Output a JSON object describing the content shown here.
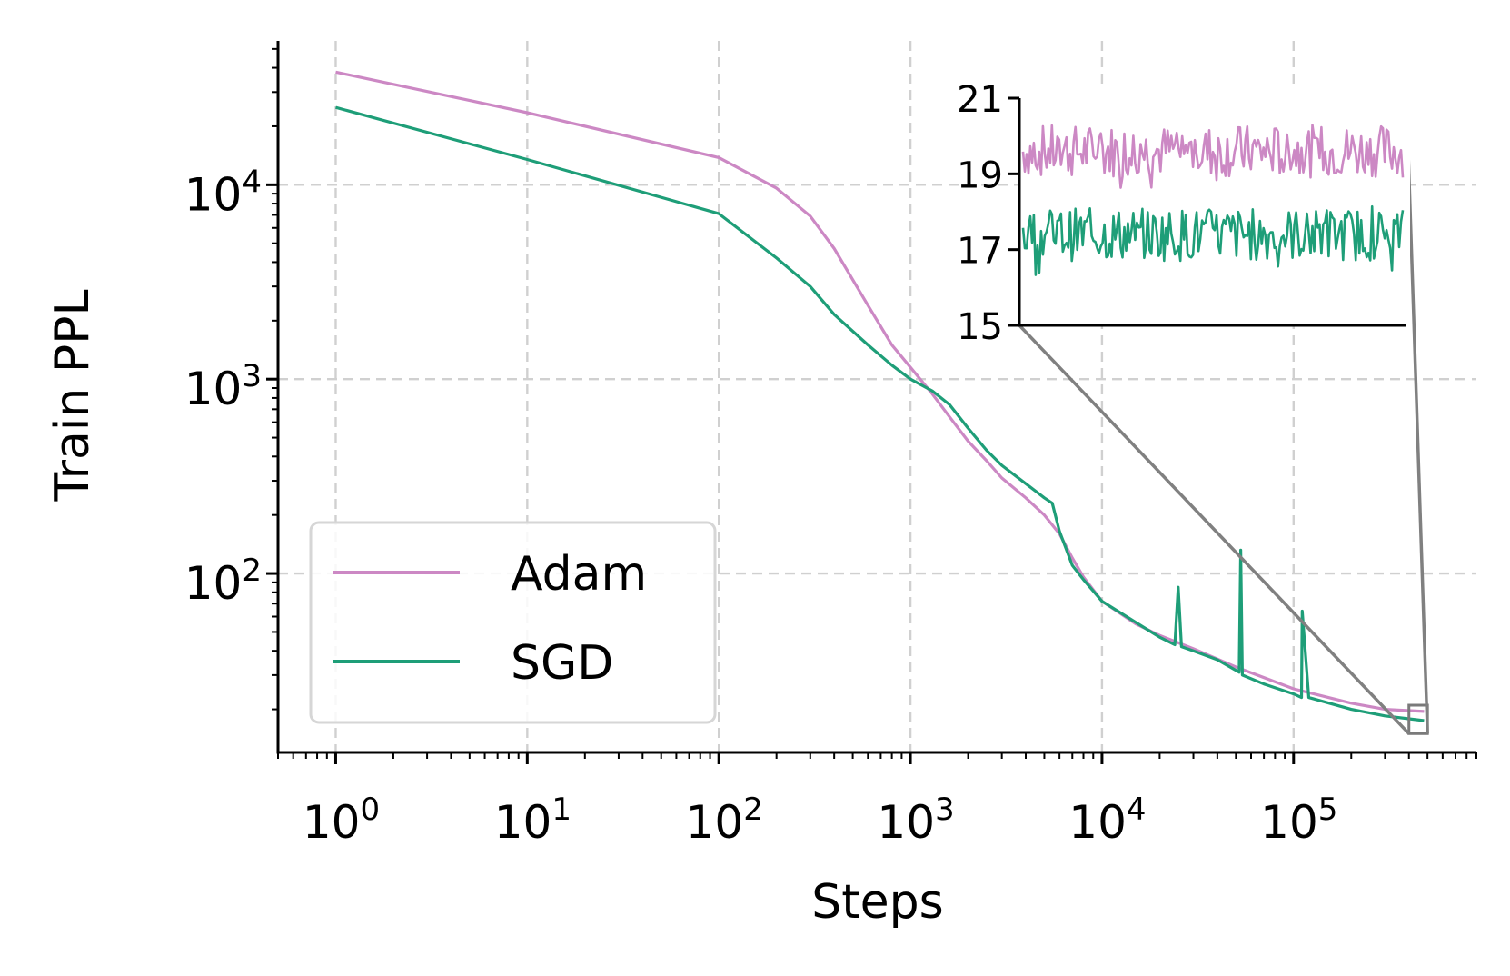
{
  "chart_data": {
    "type": "line",
    "title": "",
    "xlabel": "Steps",
    "ylabel": "Train PPL",
    "xscale": "log",
    "yscale": "log",
    "xlim": [
      0.5,
      900000
    ],
    "ylim": [
      12,
      55000
    ],
    "grid": true,
    "legend_position": "lower-left",
    "x_tick_labels": [
      {
        "base": "10",
        "exp": "0"
      },
      {
        "base": "10",
        "exp": "1"
      },
      {
        "base": "10",
        "exp": "2"
      },
      {
        "base": "10",
        "exp": "3"
      },
      {
        "base": "10",
        "exp": "4"
      },
      {
        "base": "10",
        "exp": "5"
      }
    ],
    "y_tick_labels": [
      {
        "base": "10",
        "exp": "2"
      },
      {
        "base": "10",
        "exp": "3"
      },
      {
        "base": "10",
        "exp": "4"
      }
    ],
    "series": [
      {
        "name": "Adam",
        "color": "#cc88c4",
        "x": [
          1,
          10,
          100,
          200,
          300,
          400,
          600,
          800,
          1000,
          1300,
          1600,
          2000,
          2500,
          3000,
          4000,
          5000,
          6000,
          7000,
          8000,
          10000,
          15000,
          20000,
          30000,
          50000,
          100000,
          200000,
          300000,
          480000
        ],
        "y": [
          38000,
          23500,
          13800,
          9600,
          6900,
          4700,
          2400,
          1500,
          1150,
          840,
          640,
          480,
          380,
          310,
          245,
          200,
          160,
          120,
          96,
          72,
          55,
          48,
          41,
          33,
          25.5,
          21.5,
          20,
          19.5
        ]
      },
      {
        "name": "SGD",
        "color": "#1e9e78",
        "x": [
          1,
          10,
          100,
          200,
          300,
          400,
          600,
          800,
          1000,
          1300,
          1600,
          2000,
          2500,
          3000,
          4000,
          5000,
          5500,
          6000,
          7000,
          8000,
          10000,
          15000,
          20000,
          24000,
          25000,
          26000,
          30000,
          40000,
          52000,
          53000,
          54000,
          70000,
          100000,
          110000,
          111000,
          120000,
          200000,
          300000,
          480000
        ],
        "y": [
          25000,
          13500,
          7100,
          4200,
          3000,
          2150,
          1500,
          1180,
          1000,
          870,
          740,
          560,
          430,
          360,
          290,
          245,
          230,
          165,
          110,
          93,
          72,
          56,
          47,
          43,
          85,
          42,
          40,
          36,
          31,
          132,
          30,
          27,
          24,
          23,
          64,
          23,
          20,
          18.5,
          17.5
        ]
      }
    ],
    "inset": {
      "y_ticks": [
        "21",
        "19",
        "17",
        "15"
      ],
      "ylim": [
        15,
        21
      ],
      "xlim": [
        400000,
        500000
      ],
      "adam_mean": 19.6,
      "sgd_mean": 17.4
    }
  }
}
